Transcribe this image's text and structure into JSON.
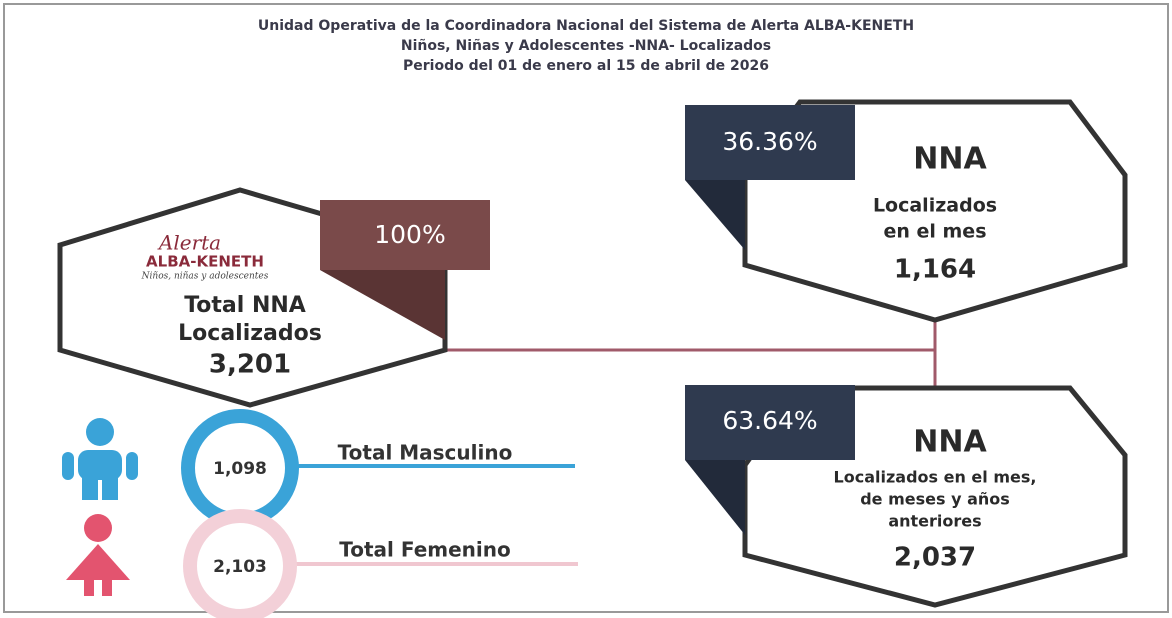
{
  "header": {
    "line1": "Unidad Operativa de la Coordinadora Nacional del Sistema de Alerta ALBA-KENETH",
    "line2": "Niños, Niñas y Adolescentes -NNA- Localizados",
    "line3": "Periodo del 01 de enero al 15 de abril de 2026"
  },
  "total": {
    "logo": {
      "script": "Alerta",
      "brand": "ALBA-KENETH",
      "tagline": "Niños, niñas y adolescentes"
    },
    "badge": "100%",
    "label1": "Total NNA",
    "label2": "Localizados",
    "value": "3,201"
  },
  "month": {
    "badge": "36.36%",
    "title": "NNA",
    "label1": "Localizados",
    "label2": "en el mes",
    "value": "1,164"
  },
  "previous": {
    "badge": "63.64%",
    "title": "NNA",
    "label1": "Localizados en el mes,",
    "label2": "de meses y años",
    "label3": "anteriores",
    "value": "2,037"
  },
  "male": {
    "value": "1,098",
    "label": "Total Masculino"
  },
  "female": {
    "value": "2,103",
    "label": "Total Femenino"
  }
}
